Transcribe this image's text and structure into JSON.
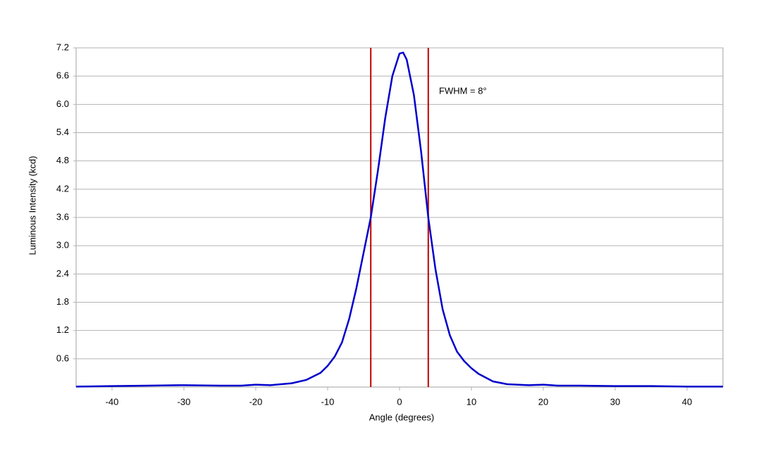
{
  "chart_data": {
    "type": "line",
    "annotation": "FWHM = 8°",
    "xlabel": "Angle (degrees)",
    "ylabel": "Luminous Intensity (kcd)",
    "xlim": [
      -45,
      45
    ],
    "xticks": [
      -40,
      -30,
      -20,
      -10,
      0,
      10,
      20,
      30,
      40
    ],
    "ylim": [
      0,
      7.2
    ],
    "yticks": [
      0.6,
      1.2,
      1.8,
      2.4,
      {
        "value": 3,
        "label": "3.0"
      },
      3.6,
      4.2,
      4.8,
      5.4,
      {
        "value": 6,
        "label": "6.0"
      },
      6.6,
      7.2
    ],
    "grid": true,
    "vlines": [
      -4,
      4
    ],
    "vline_color": "#c00000",
    "x": [
      -45,
      -40,
      -35,
      -30,
      -25,
      -22,
      -20,
      -18,
      -15,
      -13,
      -11,
      -10,
      -9,
      -8,
      -7,
      -6,
      -5,
      -4,
      -3,
      -2,
      -1,
      0,
      0.5,
      1,
      2,
      3,
      4,
      5,
      6,
      7,
      8,
      9,
      10,
      11,
      13,
      15,
      18,
      20,
      22,
      25,
      30,
      35,
      40,
      45
    ],
    "series": [
      {
        "color": "#0000cc",
        "values": [
          0.01,
          0.02,
          0.03,
          0.04,
          0.03,
          0.03,
          0.05,
          0.04,
          0.08,
          0.15,
          0.3,
          0.45,
          0.65,
          0.95,
          1.45,
          2.1,
          2.85,
          3.6,
          4.6,
          5.7,
          6.6,
          7.08,
          7.1,
          6.95,
          6.2,
          5.0,
          3.6,
          2.5,
          1.65,
          1.1,
          0.75,
          0.55,
          0.4,
          0.28,
          0.12,
          0.06,
          0.04,
          0.05,
          0.03,
          0.03,
          0.02,
          0.02,
          0.01,
          0.01
        ]
      }
    ]
  }
}
